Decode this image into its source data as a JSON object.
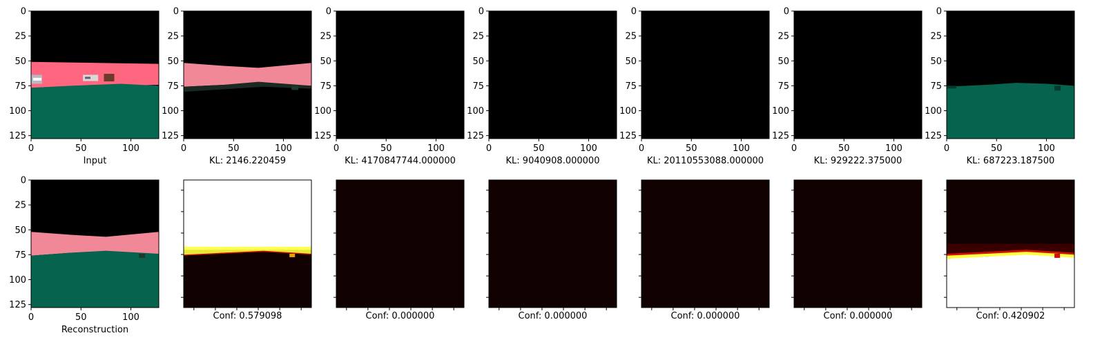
{
  "figure": {
    "rows": 2,
    "cols": 7
  },
  "chart_data": [
    {
      "type": "image",
      "panel": "top-1",
      "kind": "input",
      "caption": "Input",
      "xlim": [
        0,
        128
      ],
      "ylim": [
        128,
        0
      ],
      "xticks": [
        0,
        50,
        100
      ],
      "yticks": [
        0,
        25,
        50,
        75,
        100,
        125
      ]
    },
    {
      "type": "image",
      "panel": "top-2",
      "kind": "decoded-road",
      "caption": "KL: 2146.220459",
      "xlim": [
        0,
        128
      ],
      "ylim": [
        128,
        0
      ],
      "xticks": [
        0,
        50,
        100
      ],
      "yticks": [
        0,
        25,
        50,
        75,
        100,
        125
      ]
    },
    {
      "type": "image",
      "panel": "top-3",
      "kind": "black",
      "caption": "KL: 4170847744.000000",
      "xlim": [
        0,
        128
      ],
      "ylim": [
        128,
        0
      ],
      "xticks": [
        0,
        50,
        100
      ],
      "yticks": [
        0,
        25,
        50,
        75,
        100,
        125
      ]
    },
    {
      "type": "image",
      "panel": "top-4",
      "kind": "black",
      "caption": "KL: 9040908.000000",
      "xlim": [
        0,
        128
      ],
      "ylim": [
        128,
        0
      ],
      "xticks": [
        0,
        50,
        100
      ],
      "yticks": [
        0,
        25,
        50,
        75,
        100,
        125
      ]
    },
    {
      "type": "image",
      "panel": "top-5",
      "kind": "black",
      "caption": "KL: 20110553088.000000",
      "xlim": [
        0,
        128
      ],
      "ylim": [
        128,
        0
      ],
      "xticks": [
        0,
        50,
        100
      ],
      "yticks": [
        0,
        25,
        50,
        75,
        100,
        125
      ]
    },
    {
      "type": "image",
      "panel": "top-6",
      "kind": "black",
      "caption": "KL: 929222.375000",
      "xlim": [
        0,
        128
      ],
      "ylim": [
        128,
        0
      ],
      "xticks": [
        0,
        50,
        100
      ],
      "yticks": [
        0,
        25,
        50,
        75,
        100,
        125
      ]
    },
    {
      "type": "image",
      "panel": "top-7",
      "kind": "decoded-ground",
      "caption": "KL: 687223.187500",
      "xlim": [
        0,
        128
      ],
      "ylim": [
        128,
        0
      ],
      "xticks": [
        0,
        50,
        100
      ],
      "yticks": [
        0,
        25,
        50,
        75,
        100,
        125
      ]
    },
    {
      "type": "image",
      "panel": "bottom-1",
      "kind": "reconstruction",
      "caption": "Reconstruction",
      "xlim": [
        0,
        128
      ],
      "ylim": [
        128,
        0
      ],
      "xticks": [
        0,
        50,
        100
      ],
      "yticks": [
        0,
        25,
        50,
        75,
        100,
        125
      ]
    },
    {
      "type": "heatmap",
      "panel": "bottom-2",
      "kind": "conf-top",
      "caption": "Conf: 0.579098",
      "conf": 0.579098
    },
    {
      "type": "heatmap",
      "panel": "bottom-3",
      "kind": "conf-zero",
      "caption": "Conf: 0.000000",
      "conf": 0.0
    },
    {
      "type": "heatmap",
      "panel": "bottom-4",
      "kind": "conf-zero",
      "caption": "Conf: 0.000000",
      "conf": 0.0
    },
    {
      "type": "heatmap",
      "panel": "bottom-5",
      "kind": "conf-zero",
      "caption": "Conf: 0.000000",
      "conf": 0.0
    },
    {
      "type": "heatmap",
      "panel": "bottom-6",
      "kind": "conf-zero",
      "caption": "Conf: 0.000000",
      "conf": 0.0
    },
    {
      "type": "heatmap",
      "panel": "bottom-7",
      "kind": "conf-bottom",
      "caption": "Conf: 0.420902",
      "conf": 0.420902
    }
  ],
  "colors": {
    "sky": "#000000",
    "road": "#ff6680",
    "road_decoded": "#f08898",
    "ground": "#076852",
    "ground_dark": "#06634e",
    "heat_low": "#100000",
    "heat_mid": "#d01000",
    "heat_high": "#ffff40",
    "heat_max": "#ffffff"
  }
}
